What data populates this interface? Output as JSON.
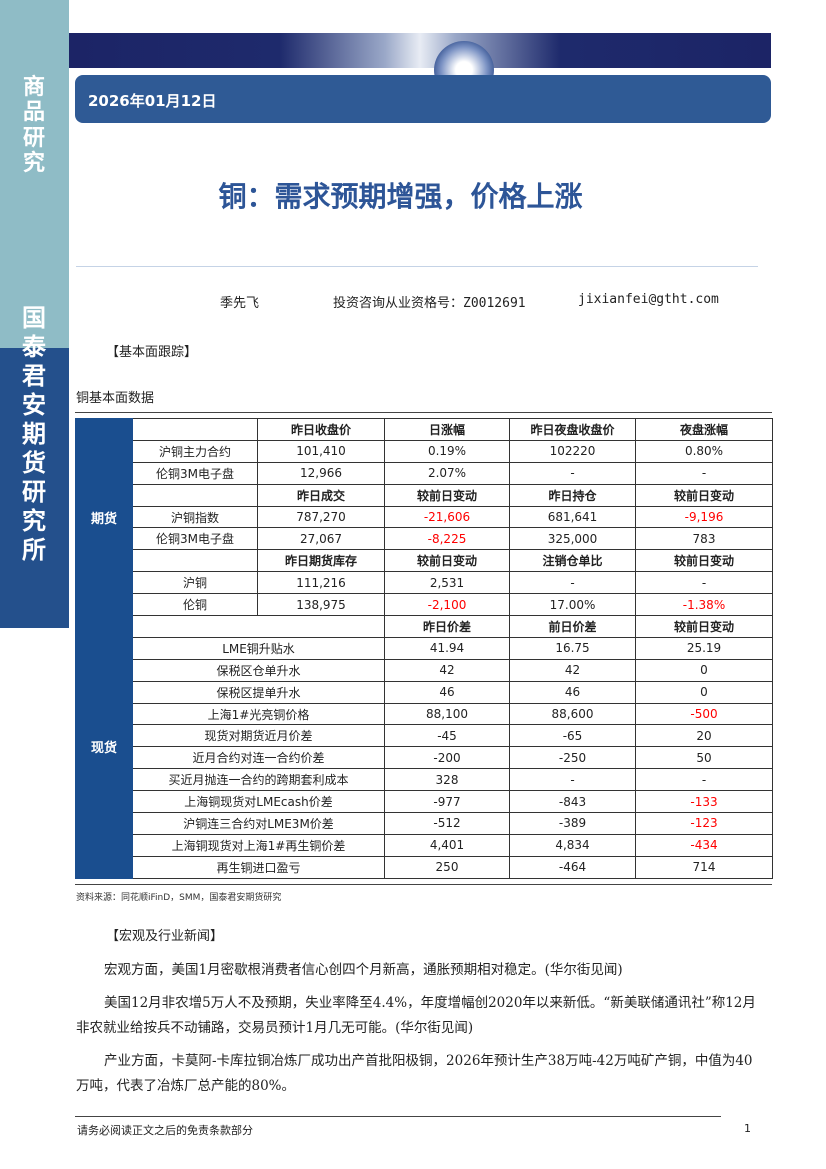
{
  "sidebar": {
    "category": "商品研究",
    "company": "国泰君安期货研究所"
  },
  "header": {
    "date": "2026年01月12日"
  },
  "report": {
    "title": "铜：需求预期增强，价格上涨",
    "author": "季先飞",
    "qualification": "投资咨询从业资格号：Z0012691",
    "email": "jixianfei@gtht.com"
  },
  "fundamentals": {
    "section_heading": "【基本面跟踪】",
    "table_caption": "铜基本面数据",
    "groups": {
      "futures": "期货",
      "spot": "现货"
    },
    "futures_rows": [
      {
        "header": true,
        "cells": [
          "",
          "昨日收盘价",
          "日涨幅",
          "昨日夜盘收盘价",
          "夜盘涨幅"
        ]
      },
      {
        "cells": [
          "沪铜主力合约",
          "101,410",
          "0.19%",
          "102220",
          "0.80%"
        ]
      },
      {
        "cells": [
          "伦铜3M电子盘",
          "12,966",
          "2.07%",
          "-",
          "-"
        ]
      },
      {
        "header": true,
        "cells": [
          "",
          "昨日成交",
          "较前日变动",
          "昨日持仓",
          "较前日变动"
        ]
      },
      {
        "cells": [
          "沪铜指数",
          "787,270",
          "-21,606",
          "681,641",
          "-9,196"
        ],
        "red": [
          2,
          4
        ]
      },
      {
        "cells": [
          "伦铜3M电子盘",
          "27,067",
          "-8,225",
          "325,000",
          "783"
        ],
        "red": [
          2
        ]
      },
      {
        "header": true,
        "cells": [
          "",
          "昨日期货库存",
          "较前日变动",
          "注销仓单比",
          "较前日变动"
        ]
      },
      {
        "cells": [
          "沪铜",
          "111,216",
          "2,531",
          "-",
          "-"
        ]
      },
      {
        "cells": [
          "伦铜",
          "138,975",
          "-2,100",
          "17.00%",
          "-1.38%"
        ],
        "red": [
          2,
          4
        ]
      }
    ],
    "spot_rows": [
      {
        "header": true,
        "cells": [
          "",
          "昨日价差",
          "前日价差",
          "较前日变动"
        ]
      },
      {
        "cells": [
          "LME铜升贴水",
          "41.94",
          "16.75",
          "25.19"
        ]
      },
      {
        "cells": [
          "保税区仓单升水",
          "42",
          "42",
          "0"
        ]
      },
      {
        "cells": [
          "保税区提单升水",
          "46",
          "46",
          "0"
        ]
      },
      {
        "cells": [
          "上海1#光亮铜价格",
          "88,100",
          "88,600",
          "-500"
        ],
        "red": [
          3
        ]
      },
      {
        "cells": [
          "现货对期货近月价差",
          "-45",
          "-65",
          "20"
        ]
      },
      {
        "cells": [
          "近月合约对连一合约价差",
          "-200",
          "-250",
          "50"
        ]
      },
      {
        "cells": [
          "买近月抛连一合约的跨期套利成本",
          "328",
          "-",
          "-"
        ]
      },
      {
        "cells": [
          "上海铜现货对LMEcash价差",
          "-977",
          "-843",
          "-133"
        ],
        "red": [
          3
        ]
      },
      {
        "cells": [
          "沪铜连三合约对LME3M价差",
          "-512",
          "-389",
          "-123"
        ],
        "red": [
          3
        ]
      },
      {
        "cells": [
          "上海铜现货对上海1#再生铜价差",
          "4,401",
          "4,834",
          "-434"
        ],
        "red": [
          3
        ]
      },
      {
        "cells": [
          "再生铜进口盈亏",
          "250",
          "-464",
          "714"
        ]
      }
    ],
    "source": "资料来源：同花顺iFinD，SMM，国泰君安期货研究"
  },
  "news": {
    "section_heading": "【宏观及行业新闻】",
    "paragraphs": [
      "宏观方面，美国1月密歇根消费者信心创四个月新高，通胀预期相对稳定。(华尔街见闻)",
      "美国12月非农增5万人不及预期，失业率降至4.4%，年度增幅创2020年以来新低。“新美联储通讯社”称12月非农就业给按兵不动铺路，交易员预计1月几无可能。(华尔街见闻)",
      "产业方面，卡莫阿-卡库拉铜冶炼厂成功出产首批阳极铜，2026年预计生产38万吨-42万吨矿产铜，中值为40万吨，代表了冶炼厂总产能的80%。"
    ]
  },
  "footer": {
    "disclaimer": "请务必阅读正文之后的免责条款部分",
    "page_number": "1"
  },
  "colors": {
    "brand_navy": "#1c2466",
    "brand_blue": "#2f5a95",
    "title_blue": "#2d5597",
    "negative": "#ff0000"
  }
}
